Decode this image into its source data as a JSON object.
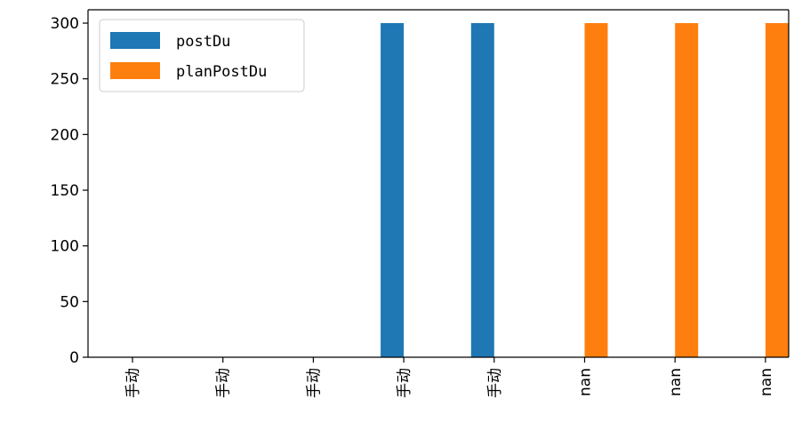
{
  "chart_data": {
    "type": "bar",
    "categories": [
      "手动",
      "手动",
      "手动",
      "手动",
      "手动",
      "nan",
      "nan",
      "nan"
    ],
    "series": [
      {
        "name": "postDu",
        "color": "#1f77b4",
        "values": [
          0,
          0,
          0,
          300,
          300,
          0,
          0,
          0
        ]
      },
      {
        "name": "planPostDu",
        "color": "#ff7f0e",
        "values": [
          0,
          0,
          0,
          0,
          0,
          300,
          300,
          300
        ]
      }
    ],
    "ylim": [
      0,
      312
    ],
    "yticks": [
      0,
      50,
      100,
      150,
      200,
      250,
      300
    ],
    "legend_position": "top-left",
    "grid": false
  }
}
